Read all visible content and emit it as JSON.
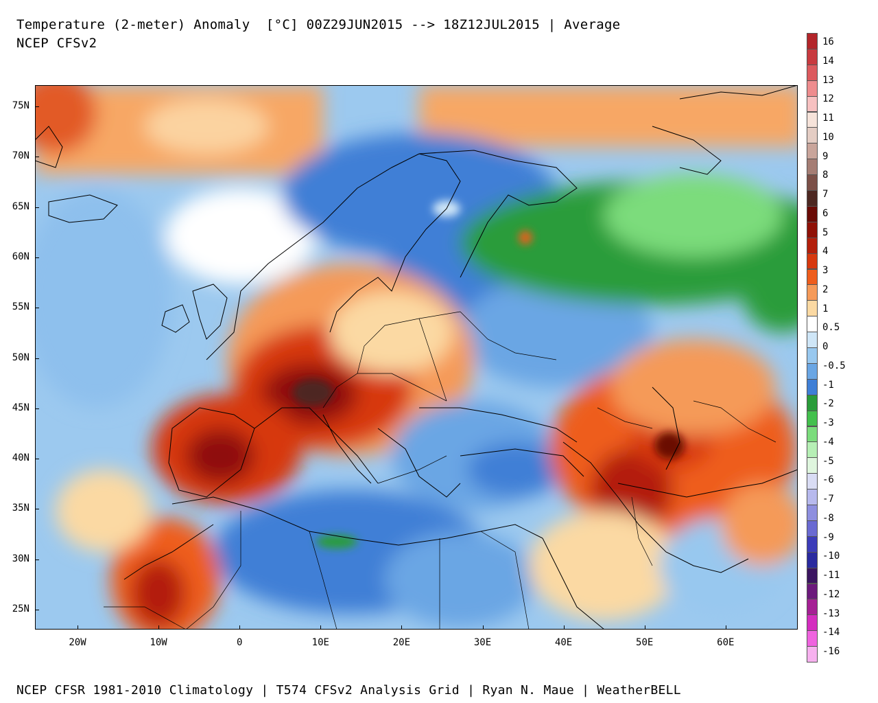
{
  "header": {
    "title": "Temperature (2-meter) Anomaly  [°C] 00Z29JUN2015 --> 18Z12JUL2015 | Average",
    "subtitle": "NCEP CFSv2"
  },
  "footer": {
    "text": "NCEP CFSR 1981-2010 Climatology | T574 CFSv2 Analysis Grid | Ryan N. Maue | WeatherBELL"
  },
  "map": {
    "lat_labels": [
      "75N",
      "70N",
      "65N",
      "60N",
      "55N",
      "50N",
      "45N",
      "40N",
      "35N",
      "30N",
      "25N"
    ],
    "lon_labels": [
      "20W",
      "10W",
      "0",
      "10E",
      "20E",
      "30E",
      "40E",
      "50E",
      "60E"
    ]
  },
  "colorbar": {
    "labels": [
      "16",
      "14",
      "13",
      "12",
      "11",
      "10",
      "9",
      "8",
      "7",
      "6",
      "5",
      "4",
      "3",
      "2",
      "1",
      "0.5",
      "0",
      "-0.5",
      "-1",
      "-2",
      "-3",
      "-4",
      "-5",
      "-6",
      "-7",
      "-8",
      "-9",
      "-10",
      "-11",
      "-12",
      "-13",
      "-14",
      "-16"
    ],
    "colors": [
      "#b3252a",
      "#c83a3f",
      "#dc5a5e",
      "#ee8c8e",
      "#f7c1c1",
      "#f6e3da",
      "#e4cdc4",
      "#c9a59b",
      "#a57d74",
      "#7c5048",
      "#4d2822",
      "#6a0b06",
      "#8f1107",
      "#b31f0b",
      "#d7380e",
      "#ee5d1c",
      "#f59a59",
      "#fbd9a3",
      "#ffffff",
      "#cfe6f7",
      "#98c8ef",
      "#6aa6e4",
      "#3f7fd6",
      "#2a9c3a",
      "#43c04d",
      "#7bdc7c",
      "#b6efb5",
      "#dff6de",
      "#d9dcf4",
      "#b7b9ed",
      "#8e8fdf",
      "#6a6ad2",
      "#3c3cb9",
      "#2a2a9f",
      "#3b1560",
      "#6c1a7c",
      "#a52094",
      "#d42dbf",
      "#ef63df",
      "#f7b1ef"
    ]
  }
}
